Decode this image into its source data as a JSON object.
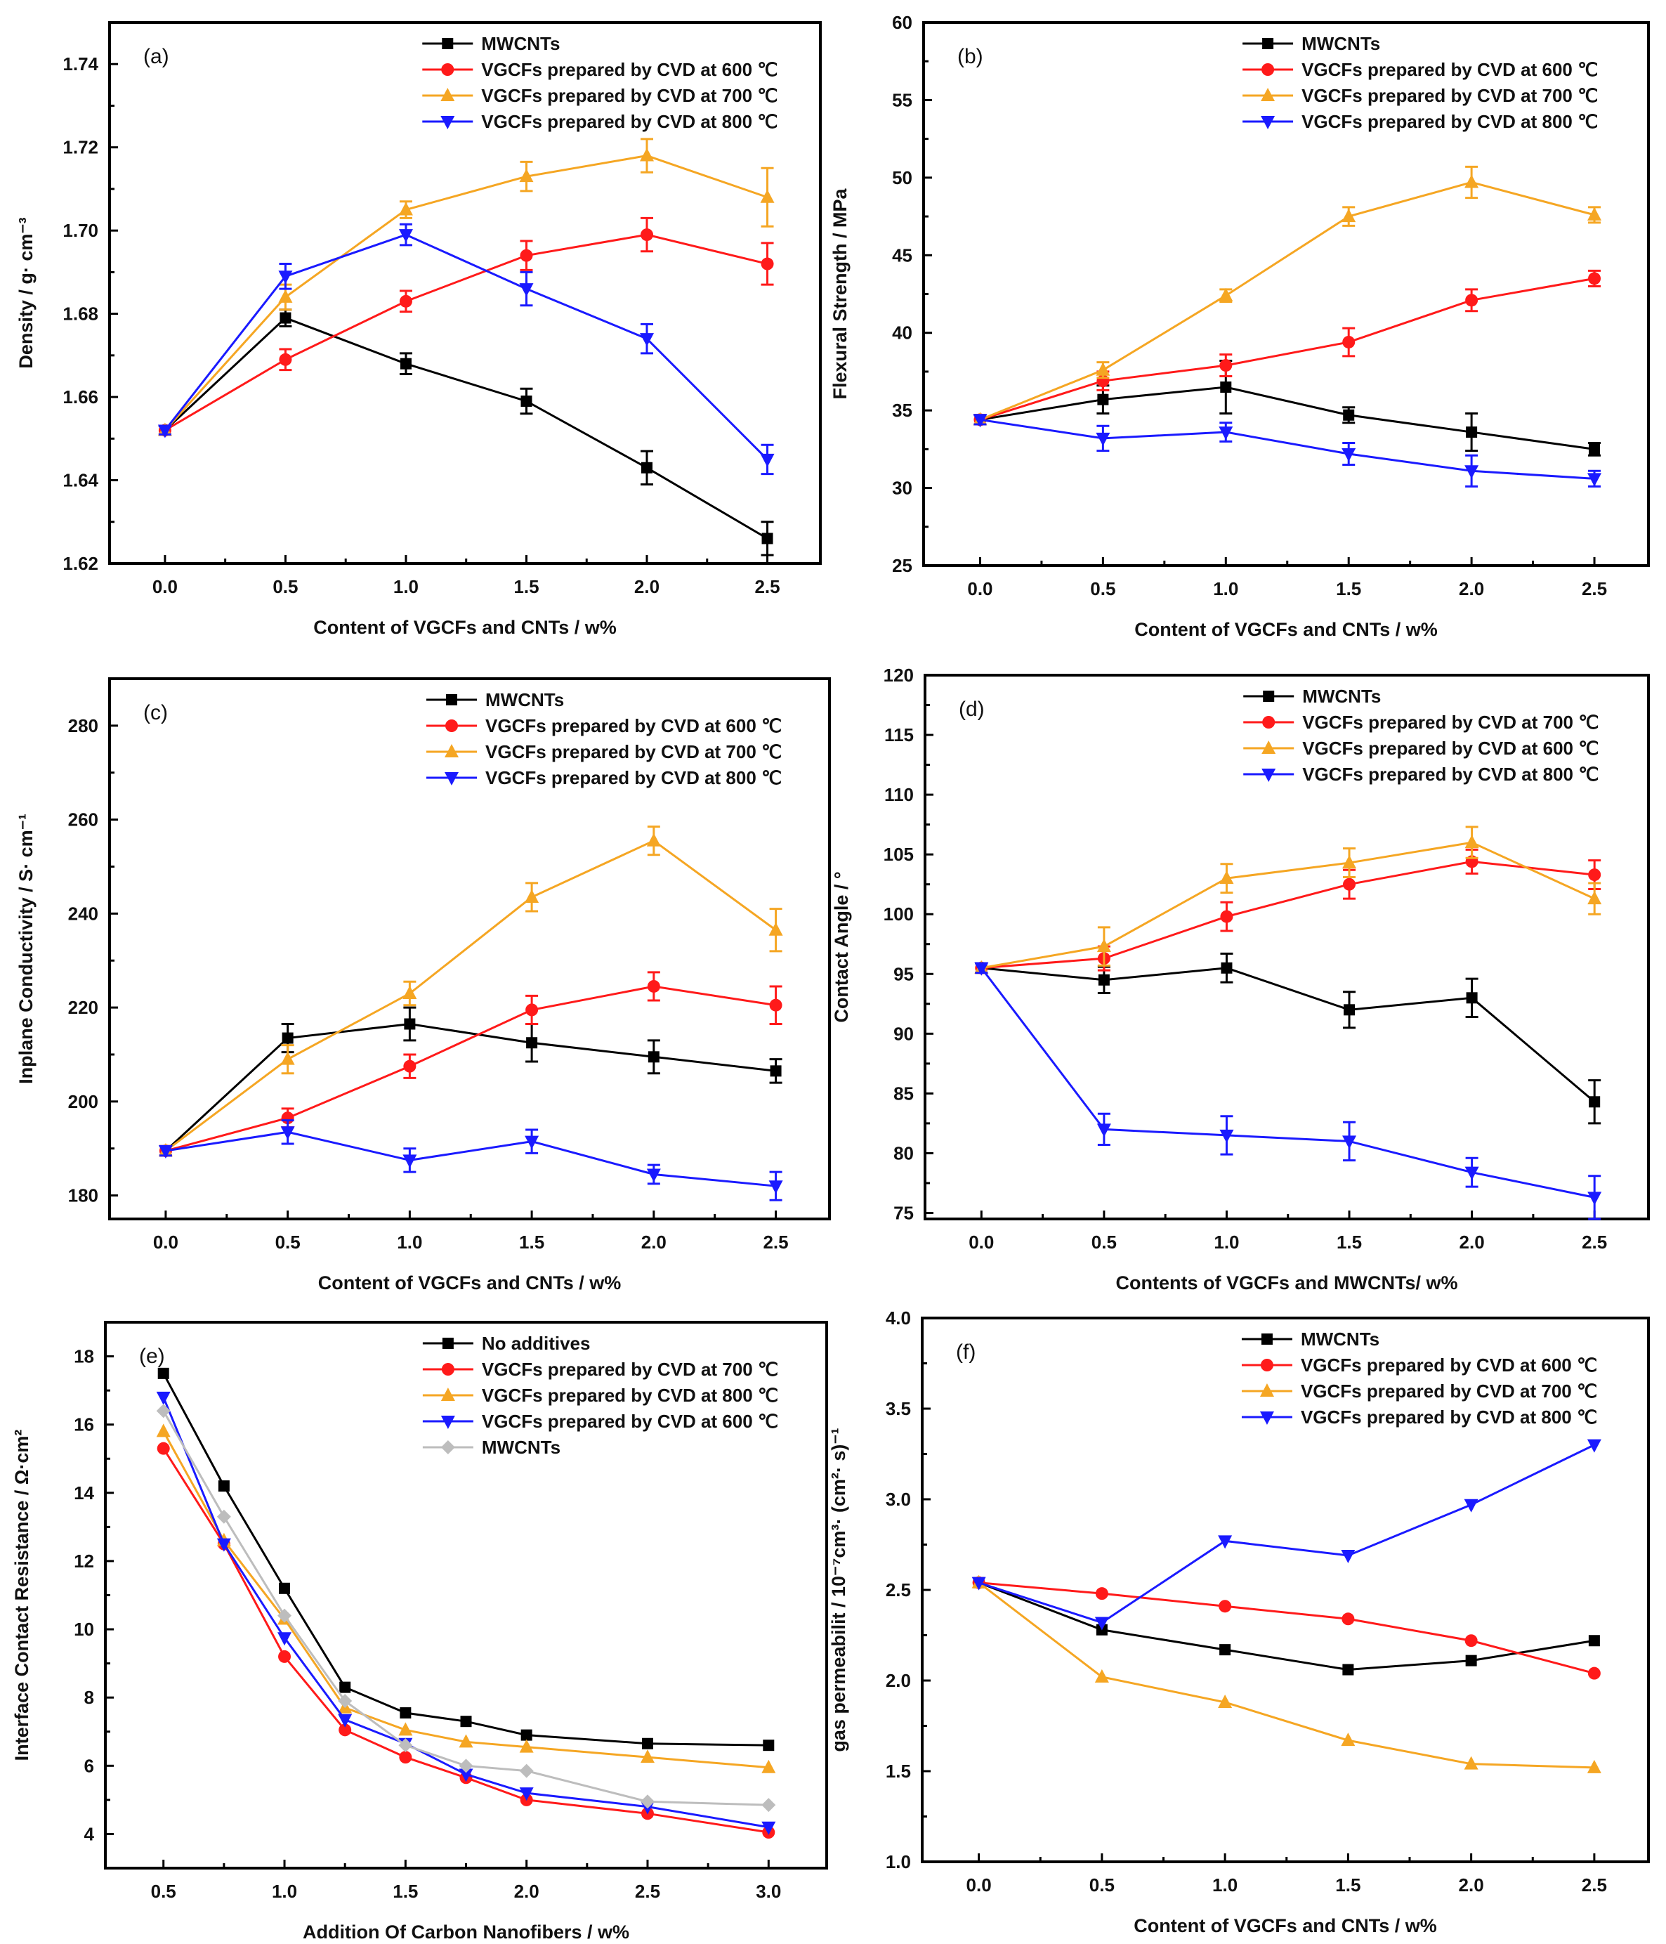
{
  "chart_data": [
    {
      "type": "line",
      "panel_label": "(a)",
      "xlabel": "Content of VGCFs and CNTs / w%",
      "ylabel": "Density / g· cm⁻³",
      "xlim": [
        -0.23,
        2.72
      ],
      "ylim": [
        1.62,
        1.75
      ],
      "xticks": [
        0.0,
        0.5,
        1.0,
        1.5,
        2.0,
        2.5
      ],
      "xtick_labels": [
        "0.0",
        "0.5",
        "1.0",
        "1.5",
        "2.0",
        "2.5"
      ],
      "yticks": [
        1.62,
        1.64,
        1.66,
        1.68,
        1.7,
        1.72,
        1.74
      ],
      "ytick_labels": [
        "1.62",
        "1.64",
        "1.66",
        "1.68",
        "1.70",
        "1.72",
        "1.74"
      ],
      "legend_position": "top-right",
      "x": [
        0.0,
        0.5,
        1.0,
        1.5,
        2.0,
        2.5
      ],
      "series": [
        {
          "name": "MWCNTs",
          "color": "#000000",
          "marker": "square",
          "values": [
            1.652,
            1.679,
            1.668,
            1.659,
            1.643,
            1.626
          ],
          "errors": [
            0.001,
            0.002,
            0.0025,
            0.003,
            0.004,
            0.004
          ]
        },
        {
          "name": "VGCFs prepared by CVD at 600 ℃",
          "color": "#ff1a1a",
          "marker": "circle",
          "values": [
            1.652,
            1.669,
            1.683,
            1.694,
            1.699,
            1.692
          ],
          "errors": [
            0.001,
            0.0025,
            0.0025,
            0.0035,
            0.004,
            0.005
          ]
        },
        {
          "name": "VGCFs prepared by CVD at 700 ℃",
          "color": "#f5a623",
          "marker": "triangle-up",
          "values": [
            1.652,
            1.684,
            1.705,
            1.713,
            1.718,
            1.708
          ],
          "errors": [
            0.001,
            0.003,
            0.002,
            0.0035,
            0.004,
            0.007
          ]
        },
        {
          "name": "VGCFs prepared by CVD at 800 ℃",
          "color": "#1a1aff",
          "marker": "triangle-down",
          "values": [
            1.652,
            1.689,
            1.699,
            1.686,
            1.674,
            1.645
          ],
          "errors": [
            0.001,
            0.003,
            0.0025,
            0.004,
            0.0035,
            0.0035
          ]
        }
      ]
    },
    {
      "type": "line",
      "panel_label": "(b)",
      "xlabel": "Content of VGCFs and CNTs / w%",
      "ylabel": "Flexural Strength / MPa",
      "xlim": [
        -0.23,
        2.72
      ],
      "ylim": [
        25,
        60
      ],
      "xticks": [
        0.0,
        0.5,
        1.0,
        1.5,
        2.0,
        2.5
      ],
      "xtick_labels": [
        "0.0",
        "0.5",
        "1.0",
        "1.5",
        "2.0",
        "2.5"
      ],
      "yticks": [
        25,
        30,
        35,
        40,
        45,
        50,
        55,
        60
      ],
      "ytick_labels": [
        "25",
        "30",
        "35",
        "40",
        "45",
        "50",
        "55",
        "60"
      ],
      "legend_position": "top-right",
      "x": [
        0.0,
        0.5,
        1.0,
        1.5,
        2.0,
        2.5
      ],
      "series": [
        {
          "name": "MWCNTs",
          "color": "#000000",
          "marker": "square",
          "values": [
            34.4,
            35.7,
            36.5,
            34.7,
            33.6,
            32.5
          ],
          "errors": [
            0.3,
            0.9,
            1.7,
            0.5,
            1.2,
            0.4
          ]
        },
        {
          "name": "VGCFs prepared by CVD at 600 ℃",
          "color": "#ff1a1a",
          "marker": "circle",
          "values": [
            34.4,
            36.9,
            37.9,
            39.4,
            42.1,
            43.5
          ],
          "errors": [
            0.3,
            0.6,
            0.7,
            0.9,
            0.7,
            0.5
          ]
        },
        {
          "name": "VGCFs prepared by CVD at 700 ℃",
          "color": "#f5a623",
          "marker": "triangle-up",
          "values": [
            34.4,
            37.6,
            42.4,
            47.5,
            49.7,
            47.6
          ],
          "errors": [
            0.3,
            0.5,
            0.4,
            0.6,
            1.0,
            0.5
          ]
        },
        {
          "name": "VGCFs prepared by CVD at 800 ℃",
          "color": "#1a1aff",
          "marker": "triangle-down",
          "values": [
            34.4,
            33.2,
            33.6,
            32.2,
            31.1,
            30.6
          ],
          "errors": [
            0.3,
            0.8,
            0.6,
            0.7,
            1.0,
            0.5
          ]
        }
      ]
    },
    {
      "type": "line",
      "panel_label": "(c)",
      "xlabel": "Content of VGCFs and CNTs / w%",
      "ylabel": "Inplane Conductivity / S· cm⁻¹",
      "xlim": [
        -0.23,
        2.72
      ],
      "ylim": [
        175,
        290
      ],
      "xticks": [
        0.0,
        0.5,
        1.0,
        1.5,
        2.0,
        2.5
      ],
      "xtick_labels": [
        "0.0",
        "0.5",
        "1.0",
        "1.5",
        "2.0",
        "2.5"
      ],
      "yticks": [
        180,
        200,
        220,
        240,
        260,
        280
      ],
      "ytick_labels": [
        "180",
        "200",
        "220",
        "240",
        "260",
        "280"
      ],
      "legend_position": "top-right",
      "x": [
        0.0,
        0.5,
        1.0,
        1.5,
        2.0,
        2.5
      ],
      "series": [
        {
          "name": "MWCNTs",
          "color": "#000000",
          "marker": "square",
          "values": [
            189.5,
            213.5,
            216.5,
            212.5,
            209.5,
            206.5
          ],
          "errors": [
            1,
            3,
            3.5,
            4,
            3.5,
            2.5
          ]
        },
        {
          "name": "VGCFs prepared by CVD at 600 ℃",
          "color": "#ff1a1a",
          "marker": "circle",
          "values": [
            189.5,
            196.5,
            207.5,
            219.5,
            224.5,
            220.5
          ],
          "errors": [
            1,
            2,
            2.5,
            3,
            3,
            4
          ]
        },
        {
          "name": "VGCFs prepared by CVD at 700 ℃",
          "color": "#f5a623",
          "marker": "triangle-up",
          "values": [
            189.5,
            209,
            223,
            243.5,
            255.5,
            236.5
          ],
          "errors": [
            1,
            3,
            2.5,
            3,
            3,
            4.5
          ]
        },
        {
          "name": "VGCFs prepared by CVD at 800 ℃",
          "color": "#1a1aff",
          "marker": "triangle-down",
          "values": [
            189.5,
            193.5,
            187.5,
            191.5,
            184.5,
            182
          ],
          "errors": [
            1,
            2.5,
            2.5,
            2.5,
            2,
            3
          ]
        }
      ]
    },
    {
      "type": "line",
      "panel_label": "(d)",
      "xlabel": "Contents of VGCFs and MWCNTs/ w%",
      "ylabel": "Contact Angle / °",
      "xlim": [
        -0.23,
        2.72
      ],
      "ylim": [
        74.5,
        120
      ],
      "xticks": [
        0.0,
        0.5,
        1.0,
        1.5,
        2.0,
        2.5
      ],
      "xtick_labels": [
        "0.0",
        "0.5",
        "1.0",
        "1.5",
        "2.0",
        "2.5"
      ],
      "yticks": [
        75,
        80,
        85,
        90,
        95,
        100,
        105,
        110,
        115,
        120
      ],
      "ytick_labels": [
        "75",
        "80",
        "85",
        "90",
        "95",
        "100",
        "105",
        "110",
        "115",
        "120"
      ],
      "legend_position": "top-right",
      "x": [
        0.0,
        0.5,
        1.0,
        1.5,
        2.0,
        2.5
      ],
      "series": [
        {
          "name": "MWCNTs",
          "color": "#000000",
          "marker": "square",
          "values": [
            95.5,
            94.5,
            95.5,
            92,
            93,
            84.3
          ],
          "errors": [
            0.4,
            1.1,
            1.2,
            1.5,
            1.6,
            1.8
          ]
        },
        {
          "name": "VGCFs prepared by CVD at 700 ℃",
          "color": "#ff1a1a",
          "marker": "circle",
          "values": [
            95.5,
            96.3,
            99.8,
            102.5,
            104.4,
            103.3
          ],
          "errors": [
            0.4,
            1,
            1.2,
            1.2,
            1,
            1.2
          ]
        },
        {
          "name": "VGCFs prepared by CVD at 600 ℃",
          "color": "#f5a623",
          "marker": "triangle-up",
          "values": [
            95.5,
            97.3,
            103,
            104.3,
            106,
            101.3
          ],
          "errors": [
            0.4,
            1.6,
            1.2,
            1.2,
            1.3,
            1.3
          ]
        },
        {
          "name": "VGCFs prepared by CVD at 800 ℃",
          "color": "#1a1aff",
          "marker": "triangle-down",
          "values": [
            95.5,
            82,
            81.5,
            81,
            78.4,
            76.3
          ],
          "errors": [
            0.4,
            1.3,
            1.6,
            1.6,
            1.2,
            1.8
          ]
        }
      ]
    },
    {
      "type": "line",
      "panel_label": "(e)",
      "xlabel": "Addition Of Carbon Nanofibers / w%",
      "ylabel": "Interface Contact Resistance / Ω·cm²",
      "xlim": [
        0.26,
        3.24
      ],
      "ylim": [
        3,
        19
      ],
      "xticks": [
        0.5,
        1.0,
        1.5,
        2.0,
        2.5,
        3.0
      ],
      "xtick_labels": [
        "0.5",
        "1.0",
        "1.5",
        "2.0",
        "2.5",
        "3.0"
      ],
      "yticks": [
        4,
        6,
        8,
        10,
        12,
        14,
        16,
        18
      ],
      "ytick_labels": [
        "4",
        "6",
        "8",
        "10",
        "12",
        "14",
        "16",
        "18"
      ],
      "legend_position": "top-right",
      "x": [
        0.5,
        0.75,
        1.0,
        1.25,
        1.5,
        1.75,
        2.0,
        2.5,
        3.0
      ],
      "series": [
        {
          "name": "No additives",
          "color": "#000000",
          "marker": "square",
          "values": [
            17.5,
            14.2,
            11.2,
            8.3,
            7.55,
            7.3,
            6.9,
            6.65,
            6.6
          ]
        },
        {
          "name": "VGCFs prepared by CVD at 700 ℃",
          "color": "#ff1a1a",
          "marker": "circle",
          "values": [
            15.3,
            12.5,
            9.2,
            7.05,
            6.25,
            5.65,
            5.0,
            4.6,
            4.05
          ]
        },
        {
          "name": "VGCFs prepared by CVD at 800 ℃",
          "color": "#f5a623",
          "marker": "triangle-up",
          "values": [
            15.8,
            12.6,
            10.3,
            7.7,
            7.05,
            6.7,
            6.55,
            6.25,
            5.95
          ]
        },
        {
          "name": "VGCFs prepared by CVD at 600 ℃",
          "color": "#1a1aff",
          "marker": "triangle-down",
          "values": [
            16.8,
            12.5,
            9.75,
            7.35,
            6.65,
            5.75,
            5.2,
            4.8,
            4.2
          ]
        },
        {
          "name": "MWCNTs",
          "color": "#bdbdbd",
          "marker": "diamond",
          "values": [
            16.4,
            13.3,
            10.4,
            7.9,
            6.6,
            6.0,
            5.85,
            4.95,
            4.85
          ]
        }
      ]
    },
    {
      "type": "line",
      "panel_label": "(f)",
      "xlabel": "Content of VGCFs and CNTs / w%",
      "ylabel": "gas permeabilit / 10⁻⁷cm³· (cm²· s)⁻¹",
      "xlim": [
        -0.23,
        2.72
      ],
      "ylim": [
        1.0,
        4.0
      ],
      "xticks": [
        0.0,
        0.5,
        1.0,
        1.5,
        2.0,
        2.5
      ],
      "xtick_labels": [
        "0.0",
        "0.5",
        "1.0",
        "1.5",
        "2.0",
        "2.5"
      ],
      "yticks": [
        1.0,
        1.5,
        2.0,
        2.5,
        3.0,
        3.5,
        4.0
      ],
      "ytick_labels": [
        "1.0",
        "1.5",
        "2.0",
        "2.5",
        "3.0",
        "3.5",
        "4.0"
      ],
      "legend_position": "top-right",
      "x": [
        0.0,
        0.5,
        1.0,
        1.5,
        2.0,
        2.5
      ],
      "series": [
        {
          "name": "MWCNTs",
          "color": "#000000",
          "marker": "square",
          "values": [
            2.54,
            2.28,
            2.17,
            2.06,
            2.11,
            2.22
          ]
        },
        {
          "name": "VGCFs prepared by CVD at 600 ℃",
          "color": "#ff1a1a",
          "marker": "circle",
          "values": [
            2.54,
            2.48,
            2.41,
            2.34,
            2.22,
            2.04
          ]
        },
        {
          "name": "VGCFs prepared by CVD at 700 ℃",
          "color": "#f5a623",
          "marker": "triangle-up",
          "values": [
            2.54,
            2.02,
            1.88,
            1.67,
            1.54,
            1.52
          ]
        },
        {
          "name": "VGCFs prepared by CVD at 800 ℃",
          "color": "#1a1aff",
          "marker": "triangle-down",
          "values": [
            2.54,
            2.32,
            2.77,
            2.69,
            2.97,
            3.3
          ]
        }
      ]
    }
  ]
}
